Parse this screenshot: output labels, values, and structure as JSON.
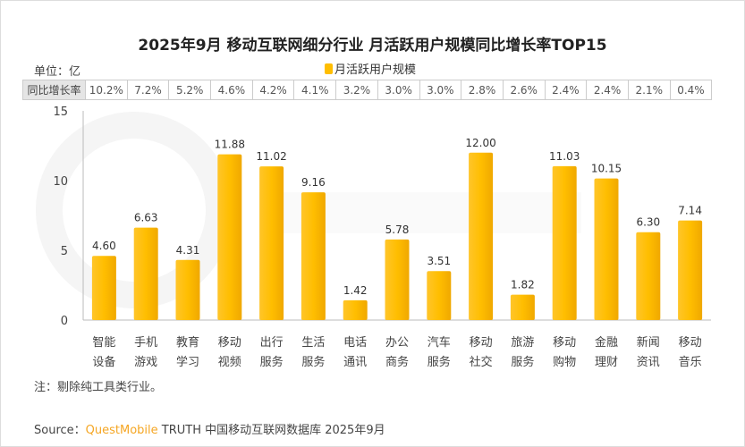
{
  "title": "2025年9月 移动互联网细分行业 月活跃用户规模同比增长率TOP15",
  "unit_label": "单位：亿",
  "growth_row": {
    "header": "同比增长率",
    "values": [
      "10.2%",
      "7.2%",
      "5.2%",
      "4.6%",
      "4.2%",
      "4.1%",
      "3.2%",
      "3.0%",
      "3.0%",
      "2.8%",
      "2.6%",
      "2.4%",
      "2.4%",
      "2.1%",
      "0.4%"
    ]
  },
  "note": "注：剔除纯工具类行业。",
  "source": {
    "prefix": "Source：",
    "brand": "QuestMobile",
    "rest": " TRUTH 中国移动互联网数据库 2025年9月"
  },
  "watermark": "QUESTMOBILE",
  "colors": {
    "bar": "#FFBE00",
    "brand": "#F5A623"
  },
  "chart_data": {
    "type": "bar",
    "title": "2025年9月 移动互联网细分行业 月活跃用户规模同比增长率TOP15",
    "ylabel": "单位：亿",
    "ylim": [
      0,
      15
    ],
    "yticks": [
      "0",
      "5",
      "10",
      "15"
    ],
    "grid": false,
    "legend": "top-center",
    "categories": [
      [
        "智能",
        "设备"
      ],
      [
        "手机",
        "游戏"
      ],
      [
        "教育",
        "学习"
      ],
      [
        "移动",
        "视频"
      ],
      [
        "出行",
        "服务"
      ],
      [
        "生活",
        "服务"
      ],
      [
        "电话",
        "通讯"
      ],
      [
        "办公",
        "商务"
      ],
      [
        "汽车",
        "服务"
      ],
      [
        "移动",
        "社交"
      ],
      [
        "旅游",
        "服务"
      ],
      [
        "移动",
        "购物"
      ],
      [
        "金融",
        "理财"
      ],
      [
        "新闻",
        "资讯"
      ],
      [
        "移动",
        "音乐"
      ]
    ],
    "series": [
      {
        "name": "月活跃用户规模",
        "values": [
          4.6,
          6.63,
          4.31,
          11.88,
          11.02,
          9.16,
          1.42,
          5.78,
          3.51,
          12.0,
          1.82,
          11.03,
          10.15,
          6.3,
          7.14
        ]
      }
    ]
  }
}
